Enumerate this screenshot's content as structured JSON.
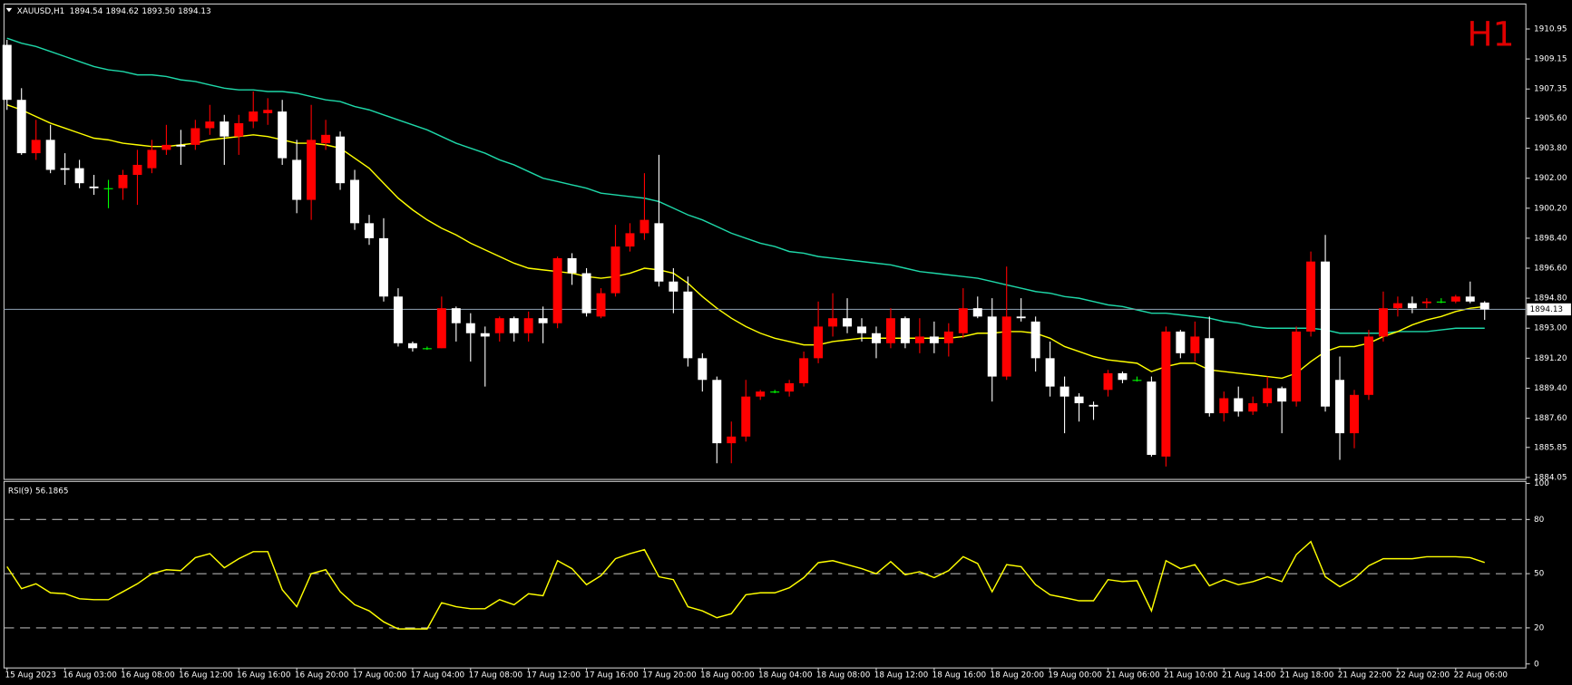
{
  "chart_data": {
    "type": "candlestick",
    "header": {
      "symbol": "XAUUSD,H1",
      "open": "1894.54",
      "high": "1894.62",
      "low": "1893.50",
      "close": "1894.13"
    },
    "timeframe": "H1",
    "categories": [
      "15 Aug 2023",
      null,
      null,
      null,
      "16 Aug 03:00",
      null,
      null,
      null,
      "16 Aug 08:00",
      null,
      null,
      null,
      "16 Aug 12:00",
      null,
      null,
      null,
      "16 Aug 16:00",
      null,
      null,
      null,
      "16 Aug 20:00",
      null,
      null,
      null,
      "17 Aug 00:00",
      null,
      null,
      null,
      "17 Aug 04:00",
      null,
      null,
      null,
      "17 Aug 08:00",
      null,
      null,
      null,
      "17 Aug 12:00",
      null,
      null,
      null,
      "17 Aug 16:00",
      null,
      null,
      null,
      "17 Aug 20:00",
      null,
      null,
      null,
      "18 Aug 00:00",
      null,
      null,
      null,
      "18 Aug 04:00",
      null,
      null,
      null,
      "18 Aug 08:00",
      null,
      null,
      null,
      "18 Aug 12:00",
      null,
      null,
      null,
      "18 Aug 16:00",
      null,
      null,
      null,
      "18 Aug 20:00",
      null,
      null,
      null,
      "19 Aug 00:00",
      null,
      null,
      null,
      "21 Aug 06:00",
      null,
      null,
      null,
      "21 Aug 10:00",
      null,
      null,
      null,
      "21 Aug 14:00",
      null,
      null,
      null,
      "21 Aug 18:00",
      null,
      null,
      null,
      "21 Aug 22:00",
      null,
      null,
      null,
      "22 Aug 02:00",
      null,
      null,
      null,
      "22 Aug 06:00",
      null,
      null
    ],
    "open": [
      1910.0,
      1906.7,
      1903.5,
      1904.3,
      1902.6,
      1902.6,
      1901.5,
      1901.4,
      1901.4,
      1902.2,
      1902.6,
      1903.7,
      1904.0,
      1904.0,
      1905.0,
      1905.4,
      1904.5,
      1905.4,
      1905.9,
      1906.0,
      1903.1,
      1900.7,
      1904.1,
      1904.5,
      1901.9,
      1899.3,
      1898.4,
      1894.9,
      1892.1,
      1891.8,
      1891.8,
      1894.2,
      1893.3,
      1892.7,
      1892.7,
      1893.6,
      1892.7,
      1893.6,
      1893.3,
      1897.2,
      1896.3,
      1893.7,
      1895.1,
      1897.9,
      1898.7,
      1899.3,
      1895.8,
      1895.2,
      1891.2,
      1889.9,
      1886.1,
      1886.5,
      1888.9,
      1889.2,
      1889.2,
      1889.7,
      1891.2,
      1893.1,
      1893.6,
      1893.1,
      1892.7,
      1892.1,
      1893.6,
      1892.1,
      1892.5,
      1892.1,
      1892.7,
      1894.2,
      1893.7,
      1890.1,
      1893.7,
      1893.4,
      1891.2,
      1889.5,
      1888.9,
      1888.4,
      1889.3,
      1890.3,
      1889.9,
      1889.8,
      1885.3,
      1892.8,
      1891.5,
      1892.4,
      1887.9,
      1888.8,
      1888.0,
      1888.5,
      1889.4,
      1888.6,
      1892.8,
      1897.0,
      1889.9,
      1886.7,
      1889.0,
      1892.5,
      1894.2,
      1894.5,
      1894.5,
      1894.6,
      1894.6,
      1894.9,
      1894.54
    ],
    "high": [
      1910.3,
      1907.4,
      1905.5,
      1905.2,
      1903.5,
      1903.1,
      1902.2,
      1901.9,
      1902.5,
      1903.7,
      1904.3,
      1905.2,
      1904.9,
      1905.5,
      1906.4,
      1905.8,
      1905.8,
      1907.2,
      1906.8,
      1906.7,
      1904.3,
      1906.4,
      1905.5,
      1904.8,
      1902.5,
      1899.8,
      1899.6,
      1895.4,
      1892.2,
      1891.9,
      1894.9,
      1894.3,
      1893.9,
      1893.1,
      1893.7,
      1893.7,
      1894.0,
      1894.3,
      1897.3,
      1897.5,
      1896.6,
      1895.4,
      1899.2,
      1899.3,
      1902.3,
      1903.4,
      1896.6,
      1896.1,
      1891.5,
      1890.1,
      1887.4,
      1889.9,
      1889.3,
      1889.3,
      1889.9,
      1891.6,
      1894.6,
      1895.1,
      1894.8,
      1893.6,
      1893.1,
      1894.2,
      1893.7,
      1893.6,
      1893.4,
      1893.3,
      1895.4,
      1894.9,
      1894.8,
      1896.7,
      1894.8,
      1893.7,
      1892.2,
      1890.1,
      1889.1,
      1888.6,
      1890.5,
      1890.4,
      1890.1,
      1890.1,
      1893.1,
      1892.9,
      1893.4,
      1893.7,
      1889.2,
      1889.5,
      1888.9,
      1890.1,
      1889.5,
      1893.1,
      1897.6,
      1898.6,
      1891.3,
      1889.3,
      1892.9,
      1895.2,
      1894.9,
      1894.9,
      1894.8,
      1894.8,
      1895.0,
      1895.8,
      1894.62
    ],
    "low": [
      1906.1,
      1903.4,
      1903.1,
      1902.3,
      1901.6,
      1901.4,
      1901.0,
      1900.2,
      1900.7,
      1900.4,
      1902.3,
      1903.4,
      1902.8,
      1903.7,
      1904.6,
      1902.8,
      1903.4,
      1905.0,
      1905.2,
      1902.8,
      1899.9,
      1899.5,
      1903.7,
      1901.3,
      1898.9,
      1898.0,
      1894.6,
      1891.9,
      1891.6,
      1891.7,
      1891.8,
      1892.2,
      1891.0,
      1889.5,
      1892.2,
      1892.2,
      1892.2,
      1892.1,
      1893.0,
      1895.6,
      1893.7,
      1893.6,
      1894.9,
      1897.6,
      1898.3,
      1895.5,
      1893.9,
      1890.7,
      1889.2,
      1884.9,
      1884.9,
      1886.2,
      1888.7,
      1889.1,
      1888.9,
      1889.5,
      1890.9,
      1892.5,
      1892.7,
      1892.2,
      1891.2,
      1891.8,
      1891.8,
      1891.5,
      1891.5,
      1891.3,
      1892.4,
      1893.6,
      1888.6,
      1889.9,
      1893.4,
      1890.4,
      1888.9,
      1886.7,
      1887.4,
      1887.5,
      1888.9,
      1889.7,
      1889.8,
      1885.3,
      1884.7,
      1891.2,
      1891.0,
      1887.7,
      1887.4,
      1887.7,
      1887.8,
      1888.3,
      1886.7,
      1888.3,
      1892.5,
      1888.0,
      1885.1,
      1885.8,
      1888.7,
      1892.2,
      1893.7,
      1893.9,
      1894.2,
      1894.5,
      1894.5,
      1894.5,
      1893.5
    ],
    "close": [
      1906.7,
      1903.5,
      1904.3,
      1902.5,
      1902.5,
      1901.7,
      1901.4,
      1901.4,
      1902.2,
      1902.8,
      1903.7,
      1904.0,
      1903.9,
      1905.0,
      1905.4,
      1904.5,
      1905.3,
      1906.0,
      1906.1,
      1903.2,
      1900.7,
      1904.3,
      1904.6,
      1901.7,
      1899.3,
      1898.4,
      1894.9,
      1892.1,
      1891.8,
      1891.8,
      1894.2,
      1893.3,
      1892.7,
      1892.5,
      1893.6,
      1892.7,
      1893.6,
      1893.3,
      1897.2,
      1896.3,
      1893.9,
      1895.1,
      1897.9,
      1898.7,
      1899.5,
      1895.8,
      1895.2,
      1891.2,
      1889.9,
      1886.1,
      1886.5,
      1888.9,
      1889.2,
      1889.2,
      1889.7,
      1891.2,
      1893.1,
      1893.6,
      1893.1,
      1892.7,
      1892.1,
      1893.6,
      1892.1,
      1892.5,
      1892.1,
      1892.8,
      1894.2,
      1893.7,
      1890.1,
      1893.7,
      1893.6,
      1891.2,
      1889.5,
      1888.9,
      1888.5,
      1888.3,
      1890.3,
      1889.9,
      1889.9,
      1885.4,
      1892.8,
      1891.5,
      1892.5,
      1887.9,
      1888.8,
      1888.0,
      1888.5,
      1889.4,
      1888.6,
      1892.8,
      1897.0,
      1888.3,
      1886.7,
      1889.0,
      1892.5,
      1894.2,
      1894.5,
      1894.2,
      1894.6,
      1894.6,
      1894.9,
      1894.6,
      1894.13
    ],
    "bull_color": "#ff0000",
    "bear_color": "#ffffff",
    "doji_color": "#00ff00",
    "price_line_color": "#8090a0",
    "overlays": [
      {
        "color": "#1ed7a8",
        "values": [
          1910.4,
          1910.1,
          1909.9,
          1909.6,
          1909.3,
          1909.0,
          1908.7,
          1908.5,
          1908.4,
          1908.2,
          1908.2,
          1908.1,
          1907.9,
          1907.8,
          1907.6,
          1907.4,
          1907.3,
          1907.3,
          1907.2,
          1907.2,
          1907.1,
          1906.9,
          1906.7,
          1906.6,
          1906.3,
          1906.1,
          1905.8,
          1905.5,
          1905.2,
          1904.9,
          1904.5,
          1904.1,
          1903.8,
          1903.5,
          1903.1,
          1902.8,
          1902.4,
          1902.0,
          1901.8,
          1901.6,
          1901.4,
          1901.1,
          1901.0,
          1900.9,
          1900.8,
          1900.6,
          1900.2,
          1899.8,
          1899.5,
          1899.1,
          1898.7,
          1898.4,
          1898.1,
          1897.9,
          1897.6,
          1897.5,
          1897.3,
          1897.2,
          1897.1,
          1897.0,
          1896.9,
          1896.8,
          1896.6,
          1896.4,
          1896.3,
          1896.2,
          1896.1,
          1896.0,
          1895.8,
          1895.6,
          1895.4,
          1895.2,
          1895.1,
          1894.9,
          1894.8,
          1894.6,
          1894.4,
          1894.3,
          1894.1,
          1893.9,
          1893.9,
          1893.8,
          1893.7,
          1893.6,
          1893.4,
          1893.3,
          1893.1,
          1893.0,
          1893.0,
          1893.0,
          1893.0,
          1892.9,
          1892.7,
          1892.7,
          1892.7,
          1892.7,
          1892.8,
          1892.8,
          1892.8,
          1892.9,
          1893.0,
          1893.0,
          1893.0
        ]
      },
      {
        "color": "#ffff00",
        "values": [
          1906.4,
          1906.1,
          1905.7,
          1905.3,
          1905.0,
          1904.7,
          1904.4,
          1904.3,
          1904.1,
          1904.0,
          1903.9,
          1903.9,
          1904.0,
          1904.1,
          1904.3,
          1904.4,
          1904.5,
          1904.6,
          1904.5,
          1904.3,
          1904.1,
          1904.1,
          1904.0,
          1903.8,
          1903.2,
          1902.6,
          1901.7,
          1900.8,
          1900.1,
          1899.5,
          1899.0,
          1898.6,
          1898.1,
          1897.7,
          1897.3,
          1896.9,
          1896.6,
          1896.5,
          1896.4,
          1896.3,
          1896.1,
          1896.0,
          1896.1,
          1896.3,
          1896.6,
          1896.5,
          1896.3,
          1895.7,
          1894.9,
          1894.2,
          1893.6,
          1893.1,
          1892.7,
          1892.4,
          1892.2,
          1892.0,
          1892.0,
          1892.2,
          1892.3,
          1892.4,
          1892.4,
          1892.4,
          1892.4,
          1892.4,
          1892.4,
          1892.4,
          1892.5,
          1892.7,
          1892.7,
          1892.8,
          1892.8,
          1892.7,
          1892.4,
          1891.9,
          1891.6,
          1891.3,
          1891.1,
          1891.0,
          1890.9,
          1890.4,
          1890.7,
          1890.9,
          1890.9,
          1890.5,
          1890.4,
          1890.3,
          1890.2,
          1890.1,
          1890.0,
          1890.3,
          1891.0,
          1891.6,
          1891.9,
          1891.9,
          1892.1,
          1892.5,
          1892.8,
          1893.2,
          1893.5,
          1893.7,
          1894.0,
          1894.2,
          1894.3
        ]
      }
    ],
    "ylim": [
      1883.99,
      1912.39
    ],
    "yticks": [
      1910.95,
      1909.15,
      1907.35,
      {
        "value": 1905.6,
        "label": "1905.60"
      },
      {
        "value": 1903.8,
        "label": "1903.80"
      },
      {
        "value": 1902.0,
        "label": "1902.00"
      },
      {
        "value": 1900.2,
        "label": "1900.20"
      },
      {
        "value": 1898.4,
        "label": "1898.40"
      },
      {
        "value": 1896.6,
        "label": "1896.60"
      },
      {
        "value": 1894.8,
        "label": "1894.80"
      },
      {
        "value": 1893.0,
        "label": "1893.00"
      },
      {
        "value": 1891.2,
        "label": "1891.20"
      },
      {
        "value": 1889.4,
        "label": "1889.40"
      },
      {
        "value": 1887.6,
        "label": "1887.60"
      },
      1885.85,
      1884.05
    ],
    "rsi": {
      "type": "line",
      "label": "RSI(9)",
      "color": "#ffff00",
      "values": [
        53.9,
        41.7,
        44.4,
        39.4,
        38.9,
        36.1,
        35.6,
        35.6,
        40.0,
        44.4,
        50.0,
        52.2,
        51.7,
        58.9,
        61.1,
        53.3,
        58.3,
        62.2,
        62.2,
        41.1,
        31.7,
        50.0,
        52.2,
        40.0,
        32.8,
        29.4,
        23.3,
        19.4,
        19.4,
        19.4,
        33.9,
        31.7,
        30.6,
        30.6,
        35.6,
        32.8,
        38.9,
        37.8,
        57.2,
        52.8,
        43.9,
        48.9,
        58.3,
        61.1,
        63.3,
        48.3,
        46.7,
        31.7,
        29.4,
        25.6,
        27.8,
        38.3,
        39.4,
        39.4,
        42.2,
        47.8,
        56.1,
        57.2,
        55.0,
        52.8,
        50.0,
        56.7,
        49.4,
        51.1,
        47.8,
        51.7,
        59.4,
        55.6,
        40.0,
        55.0,
        53.9,
        43.9,
        38.3,
        36.7,
        35.0,
        35.0,
        46.7,
        45.6,
        46.1,
        29.4,
        57.2,
        52.8,
        55.0,
        43.3,
        46.7,
        43.9,
        45.6,
        48.3,
        45.6,
        60.6,
        67.8,
        48.3,
        42.8,
        47.2,
        54.4,
        58.3,
        58.3,
        58.3,
        59.4,
        59.4,
        59.4,
        58.9,
        56.1865
      ],
      "ylim": [
        0,
        100
      ],
      "yticks": [
        0,
        20,
        50,
        80,
        100
      ],
      "levels": [
        20,
        50,
        80
      ],
      "level_color": "#b0b0b0"
    }
  }
}
